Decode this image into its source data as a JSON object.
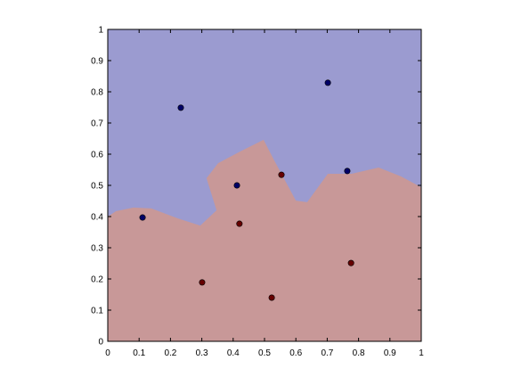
{
  "chart_data": {
    "type": "scatter",
    "xlim": [
      0,
      1
    ],
    "ylim": [
      0,
      1
    ],
    "xticks": [
      0,
      0.1,
      0.2,
      0.3,
      0.4,
      0.5,
      0.6,
      0.7,
      0.8,
      0.9,
      1
    ],
    "yticks": [
      0,
      0.1,
      0.2,
      0.3,
      0.4,
      0.5,
      0.6,
      0.7,
      0.8,
      0.9,
      1
    ],
    "grid": false,
    "boundary": {
      "color_above": "#9b9bd0",
      "color_below": "#c89898",
      "x": [
        0,
        0.026,
        0.082,
        0.139,
        0.224,
        0.295,
        0.347,
        0.315,
        0.352,
        0.423,
        0.497,
        0.531,
        0.6,
        0.636,
        0.702,
        0.778,
        0.864,
        0.935,
        1
      ],
      "y": [
        0.4,
        0.417,
        0.429,
        0.426,
        0.394,
        0.371,
        0.42,
        0.523,
        0.571,
        0.609,
        0.646,
        0.58,
        0.451,
        0.446,
        0.537,
        0.537,
        0.557,
        0.529,
        0.494
      ]
    },
    "series": [
      {
        "color": "#000066",
        "x": [
          0.111,
          0.233,
          0.412,
          0.702,
          0.764
        ],
        "values": [
          0.397,
          0.749,
          0.5,
          0.829,
          0.546
        ]
      },
      {
        "color": "#660000",
        "x": [
          0.301,
          0.42,
          0.523,
          0.554,
          0.776
        ],
        "values": [
          0.189,
          0.377,
          0.14,
          0.534,
          0.251
        ]
      }
    ]
  }
}
